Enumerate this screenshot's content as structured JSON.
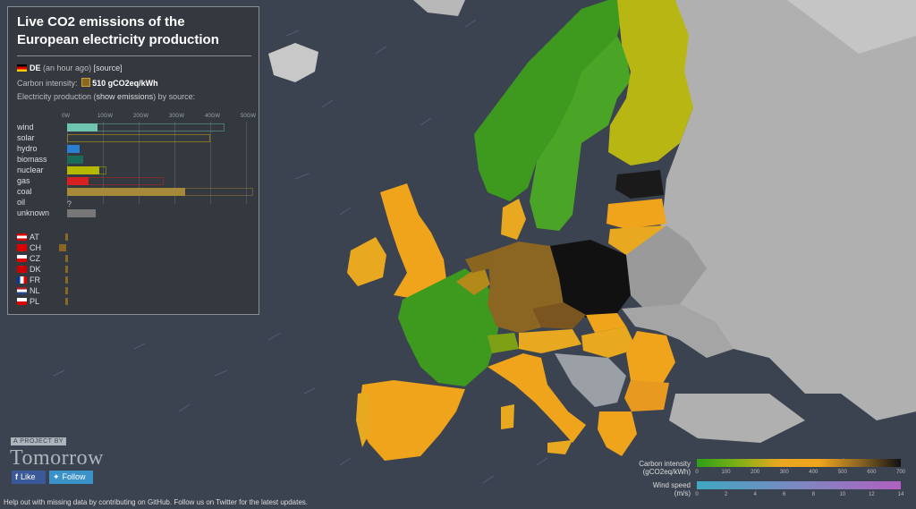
{
  "panel": {
    "title": "Live CO2 emissions of the European electricity production",
    "country_code": "DE",
    "time_ago": "(an hour ago)",
    "source_link": "[source]",
    "carbon_label": "Carbon intensity:",
    "carbon_value": "510 gCO2eq/kWh",
    "prod_prefix": "Electricity production (",
    "prod_link": "show emissions",
    "prod_suffix": ") by source:",
    "axis_ticks": [
      "0W",
      "10GW",
      "20GW",
      "30GW",
      "40GW",
      "50GW"
    ],
    "sources": [
      {
        "name": "wind",
        "value_gw": 8.5,
        "capacity_gw": 44.0,
        "color": "#6fc4b0"
      },
      {
        "name": "solar",
        "value_gw": 0,
        "capacity_gw": 40.0,
        "color": "#e8b500"
      },
      {
        "name": "hydro",
        "value_gw": 3.5,
        "capacity_gw": 0,
        "color": "#2a7fd0"
      },
      {
        "name": "biomass",
        "value_gw": 4.5,
        "capacity_gw": 0,
        "color": "#1a6b59"
      },
      {
        "name": "nuclear",
        "value_gw": 9.0,
        "capacity_gw": 11.0,
        "color": "#b5b800"
      },
      {
        "name": "gas",
        "value_gw": 6.0,
        "capacity_gw": 27.0,
        "color": "#d92020"
      },
      {
        "name": "coal",
        "value_gw": 33.0,
        "capacity_gw": 52.0,
        "color": "#a68a3a"
      },
      {
        "name": "oil",
        "value_gw": null,
        "capacity_gw": 0,
        "color": "#888"
      },
      {
        "name": "unknown",
        "value_gw": 8.0,
        "capacity_gw": 0,
        "color": "#777"
      }
    ],
    "oil_unknown_mark": "?",
    "exchanges": [
      {
        "code": "AT",
        "flag": "at"
      },
      {
        "code": "CH",
        "flag": "ch"
      },
      {
        "code": "CZ",
        "flag": "cz"
      },
      {
        "code": "DK",
        "flag": "dk"
      },
      {
        "code": "FR",
        "flag": "fr"
      },
      {
        "code": "NL",
        "flag": "nl"
      },
      {
        "code": "PL",
        "flag": "pl"
      }
    ]
  },
  "branding": {
    "project_label": "A PROJECT BY",
    "name": "Tomorrow",
    "like_label": "Like",
    "follow_label": "Follow"
  },
  "footer": {
    "help_text": "Help out with missing data by contributing on GitHub. Follow us on Twitter for the latest updates."
  },
  "legend": {
    "carbon_title_1": "Carbon intensity",
    "carbon_title_2": "(gCO2eq/kWh)",
    "carbon_ticks": [
      "0",
      "100",
      "200",
      "300",
      "400",
      "500",
      "600",
      "700"
    ],
    "wind_title_1": "Wind speed",
    "wind_title_2": "(m/s)",
    "wind_ticks": [
      "0",
      "2",
      "4",
      "6",
      "8",
      "10",
      "12",
      "14"
    ]
  },
  "colors": {
    "low_carbon": "#2e9e18",
    "mid_carbon": "#f0a41c",
    "high_carbon": "#111111",
    "no_data": "#b0b0b0",
    "ocean": "#3b4350"
  }
}
